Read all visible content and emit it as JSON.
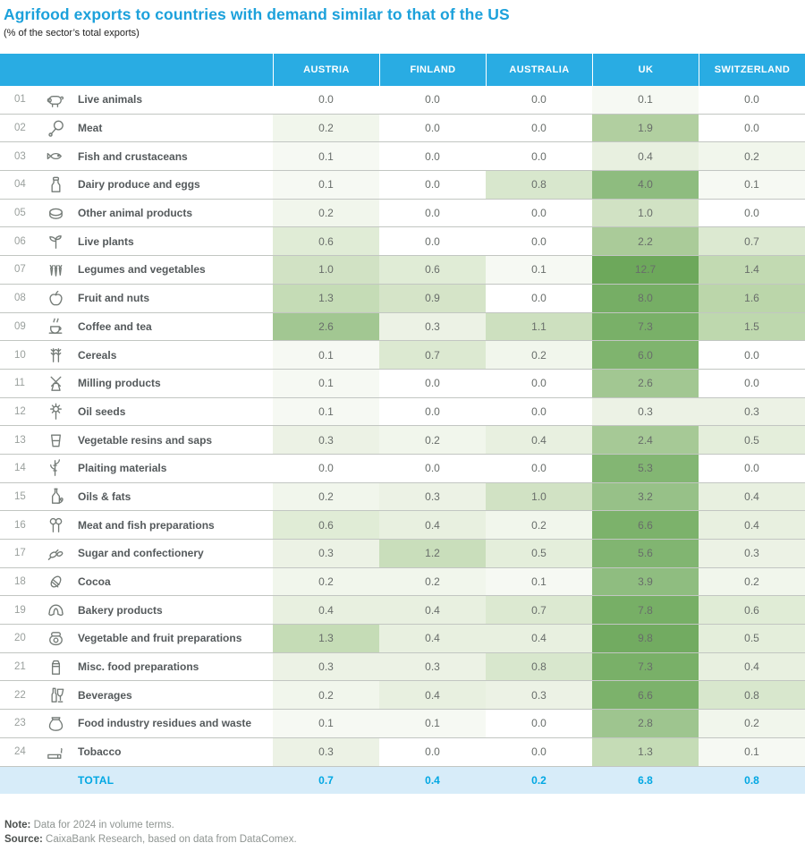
{
  "chart_data": {
    "type": "heatmap",
    "title": "Agrifood exports to countries with demand similar to that of the US",
    "subtitle": "(% of the sector’s total exports)",
    "columns": [
      "AUSTRIA",
      "FINLAND",
      "AUSTRALIA",
      "UK",
      "SWITZERLAND"
    ],
    "rows": [
      {
        "num": "01",
        "icon": "pig-icon",
        "label": "Live animals",
        "values": [
          0.0,
          0.0,
          0.0,
          0.1,
          0.0
        ]
      },
      {
        "num": "02",
        "icon": "meat-icon",
        "label": "Meat",
        "values": [
          0.2,
          0.0,
          0.0,
          1.9,
          0.0
        ]
      },
      {
        "num": "03",
        "icon": "fish-icon",
        "label": "Fish and crustaceans",
        "values": [
          0.1,
          0.0,
          0.0,
          0.4,
          0.2
        ]
      },
      {
        "num": "04",
        "icon": "milk-bottle-icon",
        "label": "Dairy produce and eggs",
        "values": [
          0.1,
          0.0,
          0.8,
          4.0,
          0.1
        ]
      },
      {
        "num": "05",
        "icon": "animal-products-icon",
        "label": "Other animal products",
        "values": [
          0.2,
          0.0,
          0.0,
          1.0,
          0.0
        ]
      },
      {
        "num": "06",
        "icon": "sprout-icon",
        "label": "Live plants",
        "values": [
          0.6,
          0.0,
          0.0,
          2.2,
          0.7
        ]
      },
      {
        "num": "07",
        "icon": "vegetables-icon",
        "label": "Legumes and vegetables",
        "values": [
          1.0,
          0.6,
          0.1,
          12.7,
          1.4
        ]
      },
      {
        "num": "08",
        "icon": "apple-icon",
        "label": "Fruit and nuts",
        "values": [
          1.3,
          0.9,
          0.0,
          8.0,
          1.6
        ]
      },
      {
        "num": "09",
        "icon": "coffee-cup-icon",
        "label": "Coffee and tea",
        "values": [
          2.6,
          0.3,
          1.1,
          7.3,
          1.5
        ]
      },
      {
        "num": "10",
        "icon": "wheat-icon",
        "label": "Cereals",
        "values": [
          0.1,
          0.7,
          0.2,
          6.0,
          0.0
        ]
      },
      {
        "num": "11",
        "icon": "windmill-icon",
        "label": "Milling products",
        "values": [
          0.1,
          0.0,
          0.0,
          2.6,
          0.0
        ]
      },
      {
        "num": "12",
        "icon": "sunflower-icon",
        "label": "Oil seeds",
        "values": [
          0.1,
          0.0,
          0.0,
          0.3,
          0.3
        ]
      },
      {
        "num": "13",
        "icon": "resin-glass-icon",
        "label": "Vegetable resins and saps",
        "values": [
          0.3,
          0.2,
          0.4,
          2.4,
          0.5
        ]
      },
      {
        "num": "14",
        "icon": "bamboo-icon",
        "label": "Plaiting materials",
        "values": [
          0.0,
          0.0,
          0.0,
          5.3,
          0.0
        ]
      },
      {
        "num": "15",
        "icon": "oil-bottle-icon",
        "label": "Oils & fats",
        "values": [
          0.2,
          0.3,
          1.0,
          3.2,
          0.4
        ]
      },
      {
        "num": "16",
        "icon": "ham-hocks-icon",
        "label": "Meat and fish preparations",
        "values": [
          0.6,
          0.4,
          0.2,
          6.6,
          0.4
        ]
      },
      {
        "num": "17",
        "icon": "candy-icon",
        "label": "Sugar and confectionery",
        "values": [
          0.3,
          1.2,
          0.5,
          5.6,
          0.3
        ]
      },
      {
        "num": "18",
        "icon": "cocoa-bean-icon",
        "label": "Cocoa",
        "values": [
          0.2,
          0.2,
          0.1,
          3.9,
          0.2
        ]
      },
      {
        "num": "19",
        "icon": "croissant-icon",
        "label": "Bakery products",
        "values": [
          0.4,
          0.4,
          0.7,
          7.8,
          0.6
        ]
      },
      {
        "num": "20",
        "icon": "jam-jar-icon",
        "label": "Vegetable and fruit preparations",
        "values": [
          1.3,
          0.4,
          0.4,
          9.8,
          0.5
        ]
      },
      {
        "num": "21",
        "icon": "food-carton-icon",
        "label": "Misc. food preparations",
        "values": [
          0.3,
          0.3,
          0.8,
          7.3,
          0.4
        ]
      },
      {
        "num": "22",
        "icon": "bottle-glass-icon",
        "label": "Beverages",
        "values": [
          0.2,
          0.4,
          0.3,
          6.6,
          0.8
        ]
      },
      {
        "num": "23",
        "icon": "sack-icon",
        "label": "Food industry residues and waste",
        "values": [
          0.1,
          0.1,
          0.0,
          2.8,
          0.2
        ]
      },
      {
        "num": "24",
        "icon": "cigarette-icon",
        "label": "Tobacco",
        "values": [
          0.3,
          0.0,
          0.0,
          1.3,
          0.1
        ]
      }
    ],
    "total": {
      "label": "TOTAL",
      "values": [
        0.7,
        0.4,
        0.2,
        6.8,
        0.8
      ]
    },
    "color_scale": {
      "type": "white-to-green",
      "stops": [
        [
          0,
          "#FFFFFF"
        ],
        [
          0.1,
          "#F6F9F3"
        ],
        [
          0.3,
          "#ECF2E5"
        ],
        [
          0.5,
          "#E4EEDB"
        ],
        [
          0.7,
          "#DCE9D1"
        ],
        [
          1.0,
          "#D1E2C4"
        ],
        [
          1.3,
          "#C5DCB6"
        ],
        [
          1.6,
          "#BBD6AA"
        ],
        [
          2.0,
          "#AECD9D"
        ],
        [
          2.6,
          "#A2C792"
        ],
        [
          3.2,
          "#97C188"
        ],
        [
          4.0,
          "#8EBC7F"
        ],
        [
          5.0,
          "#85B775"
        ],
        [
          6.5,
          "#7CB26B"
        ],
        [
          8.0,
          "#76AE65"
        ],
        [
          10.0,
          "#71AB60"
        ],
        [
          13.0,
          "#6CA85A"
        ]
      ]
    },
    "value_format": "one-decimal"
  },
  "colors": {
    "title": "#1CA1DB",
    "header_bg": "#29ACE3",
    "header_text": "#FFFFFF",
    "total_bg": "#D7ECF9",
    "total_text": "#00A7E3",
    "label_text": "#54595B",
    "value_text": "#686D6A",
    "row_number_text": "#9AA09D",
    "row_border": "#C2C6C2",
    "icon_stroke": "#747B77"
  },
  "footer": {
    "note_label": "Note:",
    "note_text": "Data for 2024 in volume terms.",
    "source_label": "Source:",
    "source_text": "CaixaBank Research, based on data from DataComex."
  }
}
